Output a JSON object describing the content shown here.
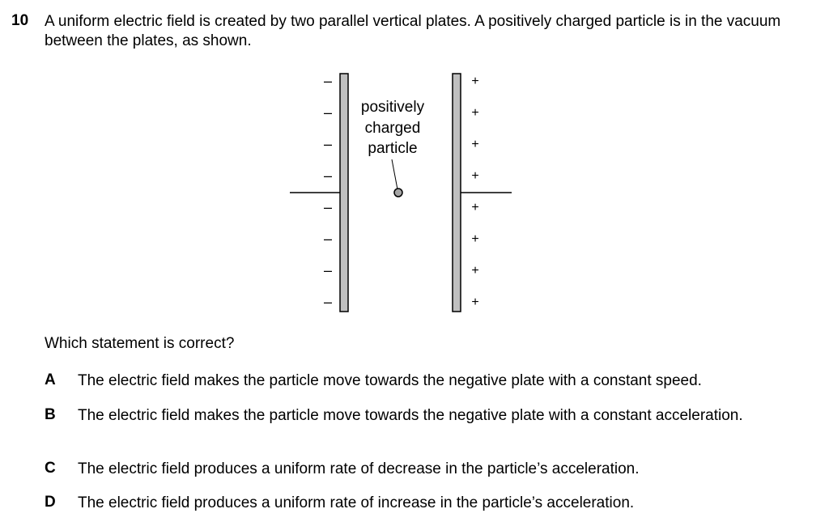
{
  "question": {
    "number": "10",
    "stem": "A uniform electric field is created by two parallel vertical plates. A positively charged particle is in the vacuum between the plates, as shown.",
    "prompt": "Which statement is correct?"
  },
  "diagram": {
    "particle_label_lines": [
      "positively",
      "charged",
      "particle"
    ],
    "left_plate_sign": "–",
    "right_plate_sign": "+",
    "colors": {
      "plate_fill": "#c0c0c0",
      "particle_fill": "#a6a6a6",
      "stroke": "#000000"
    }
  },
  "options": [
    {
      "letter": "A",
      "text": "The electric field makes the particle move towards the negative plate with a constant speed."
    },
    {
      "letter": "B",
      "text": "The electric field makes the particle move towards the negative plate with a constant acceleration."
    },
    {
      "letter": "C",
      "text": "The electric field produces a uniform rate of decrease in the particle’s acceleration."
    },
    {
      "letter": "D",
      "text": "The electric field produces a uniform rate of increase in the particle’s acceleration."
    }
  ]
}
